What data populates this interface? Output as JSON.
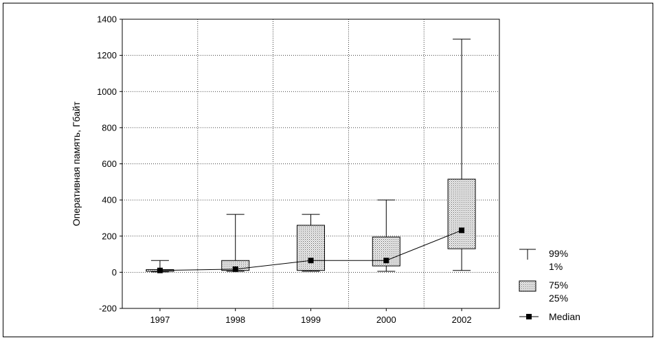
{
  "chart_data": {
    "type": "box",
    "ylabel": "Оперативная память, Гбайт",
    "ylim": [
      -200,
      1400
    ],
    "yticks": [
      -200,
      0,
      200,
      400,
      600,
      800,
      1000,
      1200,
      1400
    ],
    "categories": [
      "1997",
      "1998",
      "1999",
      "2000",
      "2002"
    ],
    "grid": true,
    "box_fill": "#e3e3e3",
    "series": [
      {
        "category": "1997",
        "p1": 2,
        "p25": 5,
        "median": 10,
        "p75": 15,
        "p99": 65
      },
      {
        "category": "1998",
        "p1": 5,
        "p25": 10,
        "median": 17,
        "p75": 65,
        "p99": 320
      },
      {
        "category": "1999",
        "p1": 5,
        "p25": 10,
        "median": 65,
        "p75": 260,
        "p99": 320
      },
      {
        "category": "2000",
        "p1": 5,
        "p25": 35,
        "median": 65,
        "p75": 195,
        "p99": 400
      },
      {
        "category": "2002",
        "p1": 10,
        "p25": 130,
        "median": 232,
        "p75": 515,
        "p99": 1290
      }
    ],
    "legend": {
      "placement": "bottom-right",
      "whisker_high": "99%",
      "whisker_low": "1%",
      "box_high": "75%",
      "box_low": "25%",
      "median": "Median"
    }
  }
}
